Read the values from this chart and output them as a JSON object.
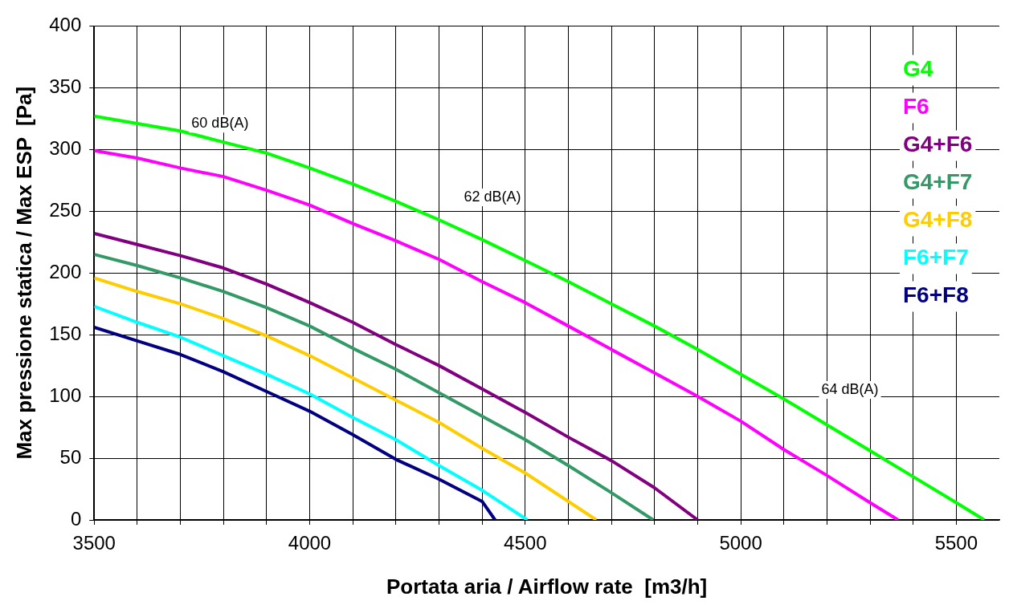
{
  "chart_data": {
    "type": "line",
    "xlabel": "Portata aria / Airflow rate  [m3/h]",
    "ylabel": "Max pressione statica / Max ESP  [Pa]",
    "xlim": [
      3500,
      5600
    ],
    "ylim": [
      0,
      400
    ],
    "xticks": [
      3500,
      {
        "value": 3600,
        "label": null
      },
      {
        "value": 3700,
        "label": null
      },
      {
        "value": 3800,
        "label": null
      },
      {
        "value": 3900,
        "label": null
      },
      4000,
      {
        "value": 4100,
        "label": null
      },
      {
        "value": 4200,
        "label": null
      },
      {
        "value": 4300,
        "label": null
      },
      {
        "value": 4400,
        "label": null
      },
      4500,
      {
        "value": 4600,
        "label": null
      },
      {
        "value": 4700,
        "label": null
      },
      {
        "value": 4800,
        "label": null
      },
      {
        "value": 4900,
        "label": null
      },
      5000,
      {
        "value": 5100,
        "label": null
      },
      {
        "value": 5200,
        "label": null
      },
      {
        "value": 5300,
        "label": null
      },
      {
        "value": 5400,
        "label": null
      },
      5500
    ],
    "yticks": [
      0,
      50,
      100,
      150,
      200,
      250,
      300,
      350,
      400
    ],
    "grid": true,
    "legend": "top right",
    "marker": "none",
    "line_style": "solid",
    "annotations": [
      "60 dB(A)",
      "62 dB(A)",
      "64 dB(A)"
    ],
    "series": [
      {
        "name": "G4",
        "color": "#00ff00",
        "x": [
          3500,
          3600,
          3700,
          3800,
          3900,
          4000,
          4100,
          4200,
          4300,
          4400,
          4500,
          4600,
          4700,
          4800,
          4900,
          5000,
          5100,
          5200,
          5300,
          5400,
          5500,
          5565
        ],
        "values": [
          327,
          321,
          315,
          306,
          297,
          285,
          272,
          258,
          243,
          227,
          210,
          193,
          175,
          157,
          138,
          118,
          98,
          77,
          56,
          35,
          14,
          0
        ]
      },
      {
        "name": "F6",
        "color": "#ff00ff",
        "x": [
          3500,
          3600,
          3700,
          3800,
          3900,
          4000,
          4100,
          4200,
          4300,
          4400,
          4500,
          4600,
          4700,
          4800,
          4900,
          5000,
          5100,
          5200,
          5300,
          5365
        ],
        "values": [
          299,
          293,
          285,
          278,
          267,
          255,
          240,
          226,
          211,
          193,
          176,
          157,
          138,
          119,
          100,
          80,
          57,
          36,
          14,
          0
        ]
      },
      {
        "name": "G4+F6",
        "color": "#800080",
        "x": [
          3500,
          3600,
          3700,
          3800,
          3900,
          4000,
          4100,
          4200,
          4300,
          4400,
          4500,
          4600,
          4700,
          4800,
          4900
        ],
        "values": [
          232,
          223,
          214,
          204,
          191,
          176,
          160,
          142,
          125,
          106,
          87,
          67,
          48,
          26,
          0
        ]
      },
      {
        "name": "G4+F7",
        "color": "#339966",
        "x": [
          3500,
          3600,
          3700,
          3800,
          3900,
          4000,
          4100,
          4200,
          4300,
          4400,
          4500,
          4600,
          4700,
          4797
        ],
        "values": [
          215,
          206,
          196,
          185,
          172,
          157,
          139,
          122,
          103,
          84,
          65,
          44,
          22,
          0
        ]
      },
      {
        "name": "G4+F8",
        "color": "#ffcc00",
        "x": [
          3500,
          3600,
          3700,
          3800,
          3900,
          4000,
          4100,
          4200,
          4300,
          4400,
          4500,
          4665
        ],
        "values": [
          196,
          185,
          175,
          163,
          149,
          133,
          115,
          97,
          79,
          58,
          38,
          0
        ]
      },
      {
        "name": "F6+F7",
        "color": "#00ffff",
        "x": [
          3500,
          3600,
          3700,
          3800,
          3900,
          4000,
          4100,
          4200,
          4300,
          4400,
          4505
        ],
        "values": [
          173,
          160,
          148,
          133,
          118,
          102,
          83,
          65,
          44,
          24,
          0
        ]
      },
      {
        "name": "F6+F8",
        "color": "#000080",
        "x": [
          3500,
          3600,
          3700,
          3800,
          3900,
          4000,
          4100,
          4200,
          4300,
          4400,
          4430
        ],
        "values": [
          156,
          145,
          134,
          120,
          104,
          88,
          69,
          49,
          33,
          15,
          0
        ]
      }
    ]
  }
}
